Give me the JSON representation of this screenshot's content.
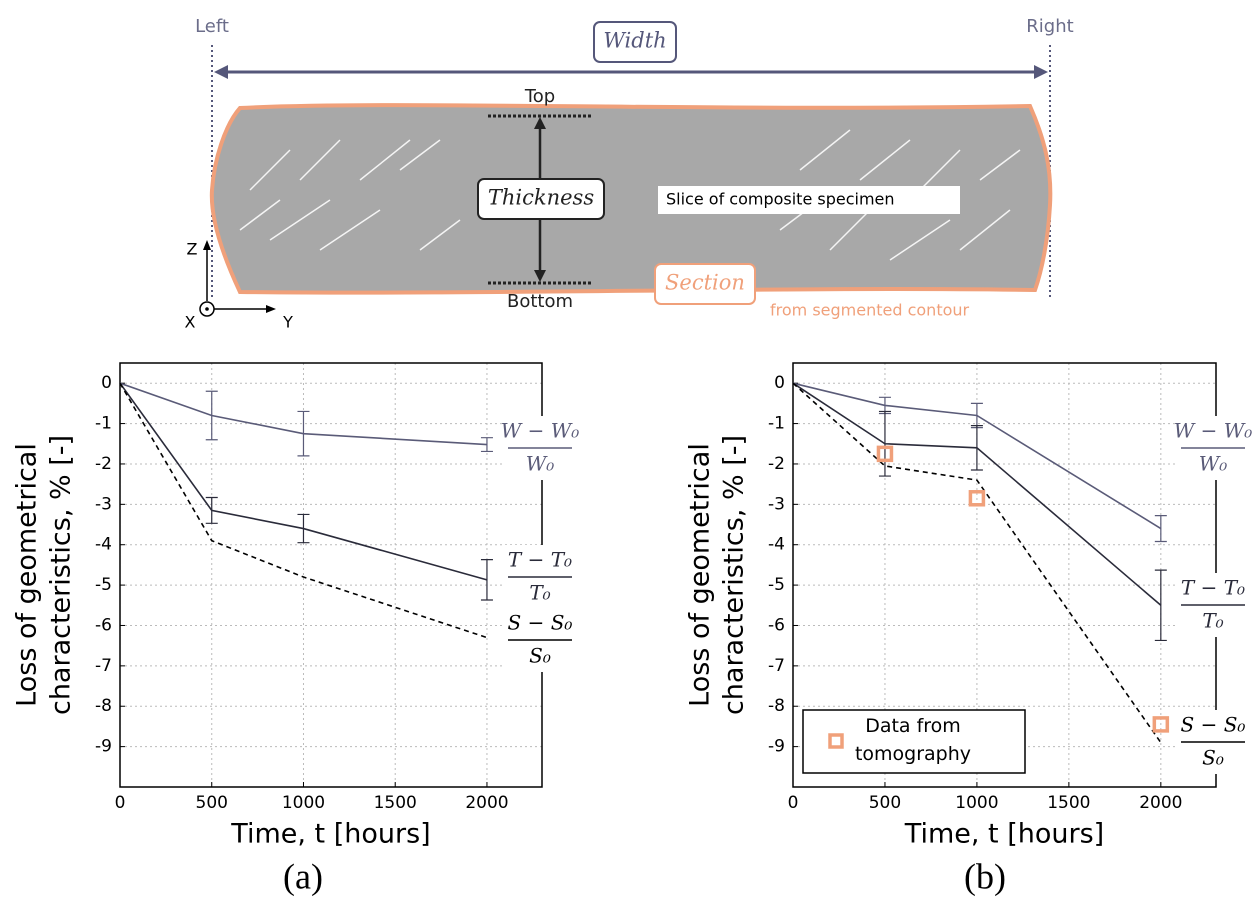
{
  "diagram": {
    "left": "Left",
    "right": "Right",
    "width": "Width",
    "top": "Top",
    "bottom": "Bottom",
    "thickness": "Thickness",
    "slice": "Slice of composite specimen",
    "section": "Section",
    "contour": "from segmented contour",
    "axis_z": "Z",
    "axis_x": "X",
    "axis_y": "Y"
  },
  "chart_data": [
    {
      "type": "line",
      "caption": "(a)",
      "xlabel": "Time, t [hours]",
      "ylabel": [
        "Loss of geometrical",
        "characteristics, % [-]"
      ],
      "xlim": [
        0,
        2300
      ],
      "ylim": [
        -10,
        0.5
      ],
      "xticks": [
        0,
        500,
        1000,
        1500,
        2000
      ],
      "yticks": [
        0,
        -1,
        -2,
        -3,
        -4,
        -5,
        -6,
        -7,
        -8,
        -9
      ],
      "grid": true,
      "x": [
        0,
        500,
        1000,
        2000
      ],
      "series": [
        {
          "name": "W − W₀",
          "name_denominator": "W₀",
          "color": "#5a5b78",
          "dashed": false,
          "values": [
            0,
            -0.8,
            -1.25,
            -1.52
          ],
          "errors": [
            null,
            0.6,
            0.55,
            0.17
          ]
        },
        {
          "name": "T − T₀",
          "name_denominator": "T₀",
          "color": "#2a2b3a",
          "dashed": false,
          "values": [
            0,
            -3.15,
            -3.6,
            -4.87
          ],
          "errors": [
            null,
            0.32,
            0.35,
            0.5
          ]
        },
        {
          "name": "S − S₀",
          "name_denominator": "S₀",
          "color": "#000000",
          "dashed": true,
          "values": [
            0,
            -3.9,
            -4.8,
            -6.3
          ]
        }
      ]
    },
    {
      "type": "line",
      "caption": "(b)",
      "xlabel": "Time, t [hours]",
      "ylabel": [
        "Loss of geometrical",
        "characteristics, % [-]"
      ],
      "xlim": [
        0,
        2300
      ],
      "ylim": [
        -10,
        0.5
      ],
      "xticks": [
        0,
        500,
        1000,
        1500,
        2000
      ],
      "yticks": [
        0,
        -1,
        -2,
        -3,
        -4,
        -5,
        -6,
        -7,
        -8,
        -9
      ],
      "grid": true,
      "x": [
        0,
        500,
        1000,
        2000
      ],
      "series": [
        {
          "name": "W − W₀",
          "name_denominator": "W₀",
          "color": "#5a5b78",
          "dashed": false,
          "values": [
            0,
            -0.55,
            -0.8,
            -3.6
          ],
          "errors": [
            null,
            0.2,
            0.3,
            0.32
          ]
        },
        {
          "name": "T − T₀",
          "name_denominator": "T₀",
          "color": "#2a2b3a",
          "dashed": false,
          "values": [
            0,
            -1.5,
            -1.6,
            -5.5
          ],
          "errors": [
            null,
            0.8,
            0.55,
            0.87
          ]
        },
        {
          "name": "S − S₀",
          "name_denominator": "S₀",
          "color": "#000000",
          "dashed": true,
          "values": [
            0,
            -2.05,
            -2.4,
            -8.9
          ]
        }
      ],
      "markers": {
        "name": "Data from tomography",
        "color": "#f0a07a",
        "x": [
          500,
          1000,
          2000
        ],
        "values": [
          -1.75,
          -2.85,
          -8.45
        ]
      },
      "legend": "lower left"
    }
  ]
}
